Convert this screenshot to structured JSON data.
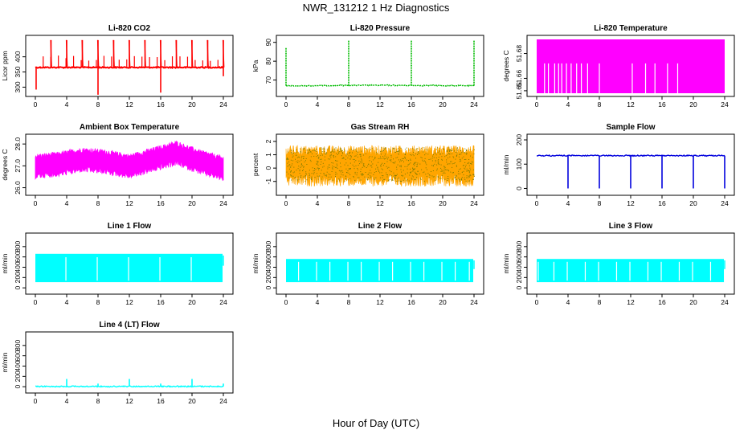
{
  "figure": {
    "title": "NWR_131212  1 Hz Diagnostics",
    "xlabel": "Hour of Day (UTC)"
  },
  "chart_data": [
    {
      "type": "line",
      "title": "Li-820 CO2",
      "ylabel": "Licor ppm",
      "color": "#ff0000",
      "xlim": [
        0,
        24
      ],
      "xticks": [
        0,
        4,
        8,
        12,
        16,
        20,
        24
      ],
      "ylim": [
        280,
        460
      ],
      "yticks": [
        300,
        350,
        400
      ],
      "baseline": 365,
      "spikes_up": [
        [
          2,
          455
        ],
        [
          4,
          455
        ],
        [
          6,
          455
        ],
        [
          8,
          455
        ],
        [
          10,
          455
        ],
        [
          12,
          455
        ],
        [
          14,
          455
        ],
        [
          16,
          455
        ],
        [
          18,
          455
        ],
        [
          20,
          455
        ],
        [
          22,
          455
        ],
        [
          24,
          455
        ]
      ],
      "spikes_down": [
        [
          0.1,
          292
        ],
        [
          8,
          275
        ],
        [
          16,
          282
        ],
        [
          24,
          336
        ]
      ]
    },
    {
      "type": "line",
      "title": "Li-820 Pressure",
      "ylabel": "kPa",
      "color": "#00bb00",
      "xlim": [
        0,
        24
      ],
      "xticks": [
        0,
        4,
        8,
        12,
        16,
        20,
        24
      ],
      "ylim": [
        63,
        92
      ],
      "yticks": [
        70,
        80,
        90
      ],
      "baseline_start": 66.9,
      "baseline_end": 67.2,
      "spikes_up": [
        [
          0,
          87
        ],
        [
          8,
          91
        ],
        [
          16,
          91
        ],
        [
          24,
          91
        ]
      ]
    },
    {
      "type": "area",
      "title": "Li-820 Temperature",
      "ylabel": "degrees C",
      "color": "#ff00ff",
      "xlim": [
        0,
        24
      ],
      "xticks": [
        0,
        4,
        8,
        12,
        16,
        20,
        24
      ],
      "ylim": [
        51.648,
        51.692
      ],
      "yticks": [
        51.65,
        51.66,
        51.68
      ],
      "ytick_labels": [
        "51.65",
        "51.66",
        "51.68"
      ],
      "gaps": [
        1,
        1.5,
        2.3,
        2.8,
        3.2,
        3.8,
        4.4,
        5.1,
        5.7,
        6.5,
        8,
        12.2,
        13.9,
        15.1,
        16.7,
        18
      ]
    },
    {
      "type": "line",
      "title": "Ambient Box Temperature",
      "ylabel": "degrees C",
      "color": "#ff00ff",
      "xlim": [
        0,
        24
      ],
      "xticks": [
        0,
        4,
        8,
        12,
        16,
        20,
        24
      ],
      "ylim": [
        25.8,
        28.3
      ],
      "yticks": [
        26.0,
        27.0,
        28.0
      ],
      "ytick_labels": [
        "26.0",
        "27.0",
        "28.0"
      ],
      "center": [
        [
          0,
          27.0
        ],
        [
          3,
          27.1
        ],
        [
          6,
          27.3
        ],
        [
          9,
          27.2
        ],
        [
          12,
          27.0
        ],
        [
          15,
          27.3
        ],
        [
          18,
          27.6
        ],
        [
          21,
          27.2
        ],
        [
          24,
          26.9
        ]
      ],
      "amplitude": 0.5
    },
    {
      "type": "scatter",
      "title": "Gas Stream RH",
      "ylabel": "percent",
      "color": "#ffa500",
      "color2": "#7a7a00",
      "xlim": [
        0,
        24
      ],
      "xticks": [
        0,
        4,
        8,
        12,
        16,
        20,
        24
      ],
      "ylim": [
        -1.8,
        2.3
      ],
      "yticks": [
        -1,
        0,
        1,
        2
      ],
      "center": 0.3,
      "amplitude": 1.4
    },
    {
      "type": "line",
      "title": "Sample Flow",
      "ylabel": "ml/min",
      "color": "#0000dd",
      "xlim": [
        0,
        24
      ],
      "xticks": [
        0,
        4,
        8,
        12,
        16,
        20,
        24
      ],
      "ylim": [
        -15,
        210
      ],
      "yticks": [
        0,
        100,
        200
      ],
      "baseline": 135,
      "spikes_down": [
        [
          4,
          0
        ],
        [
          8,
          0
        ],
        [
          12,
          0
        ],
        [
          16,
          0
        ],
        [
          20,
          0
        ],
        [
          24,
          0
        ]
      ]
    },
    {
      "type": "area",
      "title": "Line 1 Flow",
      "ylabel": "ml/min",
      "color": "#00ffff",
      "xlim": [
        0,
        24
      ],
      "xticks": [
        0,
        4,
        8,
        12,
        16,
        20,
        24
      ],
      "ylim": [
        -60,
        1000
      ],
      "yticks": [
        0,
        200,
        400,
        600,
        800
      ],
      "low": 110,
      "high": 660,
      "end_x": 23.9,
      "gaps": [
        3.9,
        7.9,
        11.9,
        15.9,
        19.9
      ]
    },
    {
      "type": "area",
      "title": "Line 2 Flow",
      "ylabel": "ml/min",
      "color": "#00ffff",
      "xlim": [
        0,
        24
      ],
      "xticks": [
        0,
        4,
        8,
        12,
        16,
        20,
        24
      ],
      "ylim": [
        -60,
        1000
      ],
      "yticks": [
        0,
        200,
        400,
        600,
        800
      ],
      "low": 110,
      "high": 560,
      "end_x": 23.9,
      "gaps": [
        1.6,
        3.9,
        5.6,
        7.9,
        9.6,
        11.9,
        13.6,
        15.9,
        17.6,
        19.9,
        21.6,
        23.4
      ]
    },
    {
      "type": "area",
      "title": "Line 3 Flow",
      "ylabel": "ml/min",
      "color": "#00ffff",
      "xlim": [
        0,
        24
      ],
      "xticks": [
        0,
        4,
        8,
        12,
        16,
        20,
        24
      ],
      "ylim": [
        -60,
        1000
      ],
      "yticks": [
        0,
        200,
        400,
        600,
        800
      ],
      "low": 110,
      "high": 560,
      "end_x": 23.9,
      "gaps": [
        0.2,
        2.2,
        3.9,
        6.2,
        7.9,
        10.2,
        11.9,
        14.2,
        15.9,
        18.2,
        19.9,
        22.2
      ]
    },
    {
      "type": "line",
      "title": "Line 4 (LT) Flow",
      "ylabel": "ml/min",
      "color": "#00ffff",
      "xlim": [
        0,
        24
      ],
      "xticks": [
        0,
        4,
        8,
        12,
        16,
        20,
        24
      ],
      "ylim": [
        -60,
        1000
      ],
      "yticks": [
        0,
        200,
        400,
        600,
        800
      ],
      "baseline": 5,
      "spikes_up": [
        [
          4,
          150
        ],
        [
          8,
          60
        ],
        [
          12,
          150
        ],
        [
          16,
          60
        ],
        [
          20,
          150
        ],
        [
          24,
          60
        ]
      ]
    }
  ]
}
